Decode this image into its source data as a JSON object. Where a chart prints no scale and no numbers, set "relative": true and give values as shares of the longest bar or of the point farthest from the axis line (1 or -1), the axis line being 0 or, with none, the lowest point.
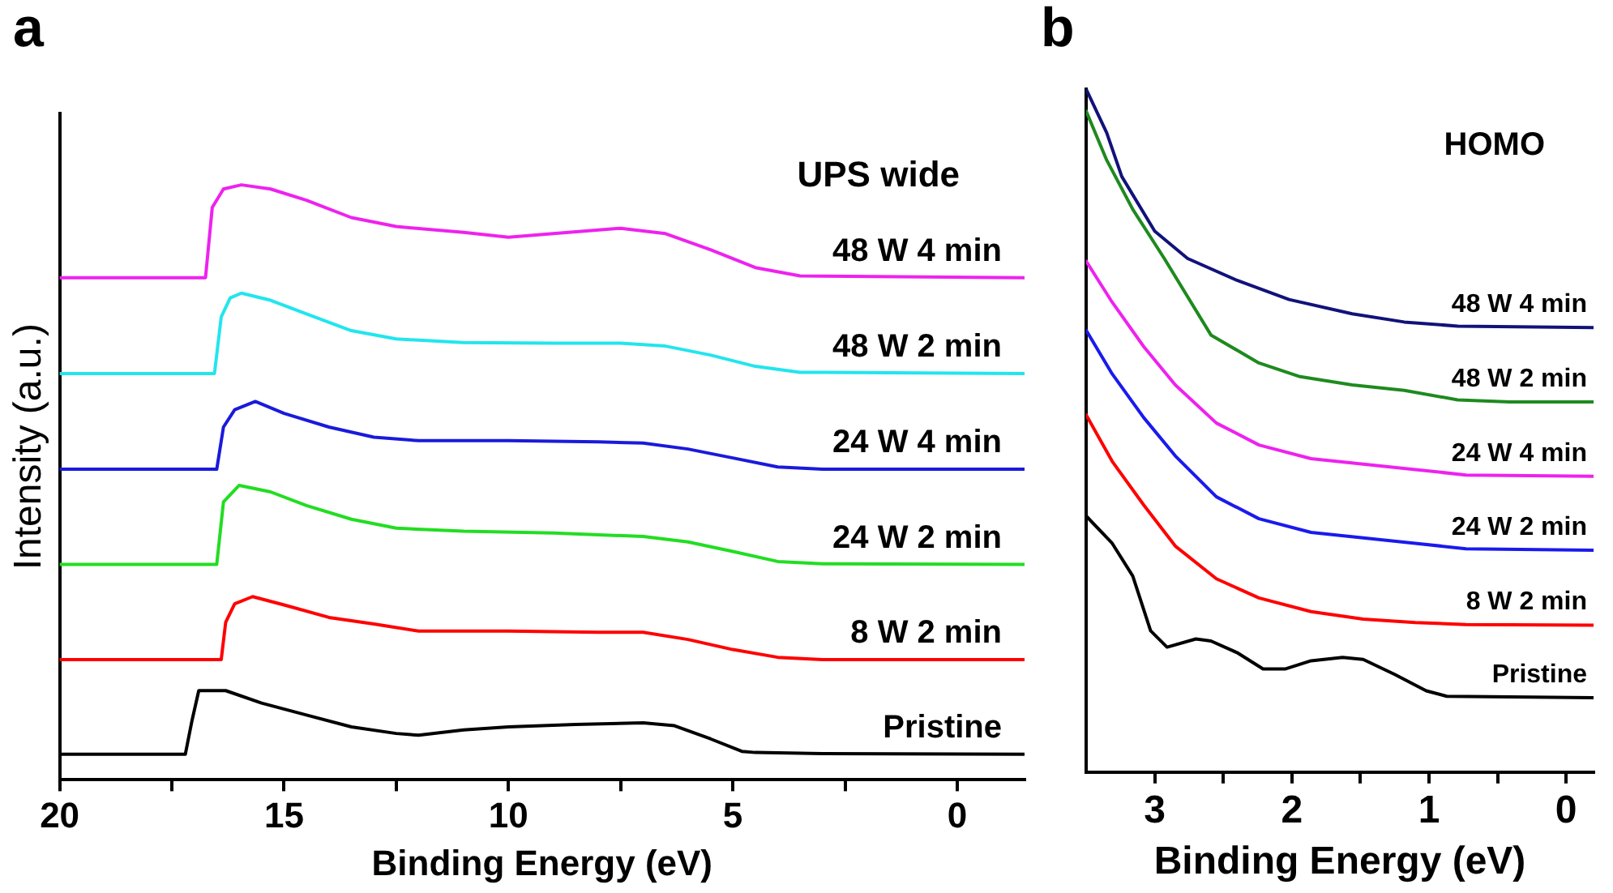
{
  "chart_data": [
    {
      "type": "line",
      "title": "a",
      "xlabel": "Binding Energy (eV)",
      "ylabel": "Intensity (a.u.)",
      "relative": true,
      "legend": false,
      "grid": false,
      "marker": "none",
      "line_style": "solid",
      "xlim": [
        20,
        -1.5
      ],
      "xticks": [
        20,
        {
          "value": 17.5,
          "label": null
        },
        15,
        {
          "value": 12.5,
          "label": null
        },
        10,
        {
          "value": 7.5,
          "label": null
        },
        5,
        {
          "value": 2.5,
          "label": null
        },
        0
      ],
      "annotations": [
        "UPS wide"
      ],
      "series": [
        {
          "name": "Pristine",
          "color": "#000000",
          "x": [
            20,
            17.2,
            17.05,
            16.9,
            16.3,
            15.5,
            14.5,
            13.5,
            12.5,
            12,
            11,
            10,
            8.5,
            7,
            6.3,
            5.5,
            4.8,
            4.5,
            3,
            -1.5
          ],
          "values": [
            0.043,
            0.043,
            0.1,
            0.15,
            0.15,
            0.129,
            0.109,
            0.089,
            0.078,
            0.075,
            0.084,
            0.089,
            0.093,
            0.096,
            0.091,
            0.069,
            0.048,
            0.046,
            0.044,
            0.043
          ]
        },
        {
          "name": "8 W 2 min",
          "color": "#ff0000",
          "x": [
            20,
            16.4,
            16.3,
            16.1,
            15.7,
            15,
            14,
            13,
            12,
            10,
            8,
            7,
            6,
            5,
            4,
            3,
            -1.5
          ],
          "values": [
            0.202,
            0.202,
            0.265,
            0.296,
            0.308,
            0.294,
            0.273,
            0.262,
            0.25,
            0.25,
            0.248,
            0.248,
            0.236,
            0.219,
            0.206,
            0.202,
            0.202
          ]
        },
        {
          "name": "24 W 2 min",
          "color": "#22dd22",
          "x": [
            20,
            16.5,
            16.35,
            16,
            15.3,
            14.5,
            13.5,
            12.5,
            11,
            9,
            7,
            6,
            5,
            4,
            3,
            -1.5
          ],
          "values": [
            0.362,
            0.362,
            0.467,
            0.495,
            0.484,
            0.461,
            0.438,
            0.423,
            0.418,
            0.415,
            0.409,
            0.4,
            0.384,
            0.367,
            0.363,
            0.362
          ]
        },
        {
          "name": "24 W 4 min",
          "color": "#1a1adb",
          "x": [
            20,
            16.5,
            16.35,
            16.1,
            15.64,
            15,
            14,
            13,
            12,
            10,
            8,
            7,
            6,
            5,
            4,
            3,
            -1.5
          ],
          "values": [
            0.522,
            0.522,
            0.593,
            0.622,
            0.636,
            0.616,
            0.593,
            0.576,
            0.57,
            0.57,
            0.568,
            0.566,
            0.556,
            0.541,
            0.526,
            0.522,
            0.522
          ]
        },
        {
          "name": "48 W 2 min",
          "color": "#22e5ee",
          "x": [
            20,
            16.55,
            16.4,
            16.2,
            15.95,
            15.3,
            14.5,
            13.5,
            12.5,
            11,
            9,
            7.5,
            6.5,
            5.5,
            4.5,
            3.5,
            -1.5
          ],
          "values": [
            0.683,
            0.683,
            0.778,
            0.81,
            0.818,
            0.806,
            0.783,
            0.755,
            0.741,
            0.735,
            0.734,
            0.734,
            0.729,
            0.714,
            0.695,
            0.685,
            0.683
          ]
        },
        {
          "name": "48 W 4 min",
          "color": "#ee22ee",
          "x": [
            20,
            16.75,
            16.6,
            16.35,
            15.95,
            15.3,
            14.5,
            13.5,
            12.5,
            11,
            10,
            9,
            7.5,
            6.5,
            5.5,
            4.5,
            3.5,
            -1.5
          ],
          "values": [
            0.844,
            0.844,
            0.962,
            0.993,
            1.0,
            0.993,
            0.974,
            0.945,
            0.93,
            0.92,
            0.912,
            0.918,
            0.927,
            0.918,
            0.891,
            0.861,
            0.847,
            0.844
          ]
        }
      ]
    },
    {
      "type": "line",
      "title": "b",
      "xlabel": "Binding Energy (eV)",
      "relative": true,
      "legend": false,
      "grid": false,
      "marker": "none",
      "line_style": "solid",
      "xlim": [
        3.5,
        -0.2
      ],
      "xticks": [
        3,
        {
          "value": 2.5,
          "label": null
        },
        2,
        {
          "value": 1.5,
          "label": null
        },
        1,
        {
          "value": 0.5,
          "label": null
        },
        0
      ],
      "annotations": [
        "HOMO"
      ],
      "series": [
        {
          "name": "Pristine",
          "color": "#000000",
          "x": [
            3.5,
            3.31,
            3.16,
            3.03,
            2.91,
            2.7,
            2.59,
            2.4,
            2.21,
            2.05,
            1.86,
            1.63,
            1.48,
            1.25,
            1.02,
            0.87,
            -0.2
          ],
          "values": [
            0.375,
            0.335,
            0.287,
            0.207,
            0.183,
            0.195,
            0.192,
            0.175,
            0.151,
            0.151,
            0.163,
            0.168,
            0.165,
            0.143,
            0.119,
            0.111,
            0.109
          ]
        },
        {
          "name": "8 W 2 min",
          "color": "#ff0000",
          "x": [
            3.5,
            3.31,
            3.08,
            2.85,
            2.55,
            2.24,
            1.86,
            1.48,
            1.1,
            0.73,
            -0.2
          ],
          "values": [
            0.523,
            0.455,
            0.391,
            0.331,
            0.283,
            0.255,
            0.235,
            0.224,
            0.219,
            0.216,
            0.215
          ]
        },
        {
          "name": "24 W 2 min",
          "color": "#1a1aee",
          "x": [
            3.5,
            3.31,
            3.08,
            2.85,
            2.55,
            2.24,
            1.86,
            1.48,
            1.1,
            0.73,
            -0.2
          ],
          "values": [
            0.647,
            0.583,
            0.519,
            0.463,
            0.403,
            0.371,
            0.351,
            0.343,
            0.335,
            0.327,
            0.325
          ]
        },
        {
          "name": "24 W 4 min",
          "color": "#ee22ee",
          "x": [
            3.5,
            3.31,
            3.08,
            2.85,
            2.55,
            2.24,
            1.86,
            1.48,
            1.1,
            0.73,
            -0.2
          ],
          "values": [
            0.748,
            0.688,
            0.623,
            0.567,
            0.511,
            0.479,
            0.459,
            0.451,
            0.443,
            0.435,
            0.433
          ]
        },
        {
          "name": "48 W 2 min",
          "color": "#1e8a1e",
          "x": [
            3.5,
            3.35,
            3.16,
            2.93,
            2.59,
            2.24,
            1.94,
            1.56,
            1.18,
            0.79,
            0.41,
            -0.2
          ],
          "values": [
            0.968,
            0.896,
            0.824,
            0.752,
            0.64,
            0.599,
            0.579,
            0.567,
            0.559,
            0.545,
            0.542,
            0.542
          ]
        },
        {
          "name": "48 W 4 min",
          "color": "#12127a",
          "x": [
            3.5,
            3.35,
            3.24,
            3.0,
            2.76,
            2.4,
            2.02,
            1.56,
            1.18,
            0.79,
            -0.2
          ],
          "values": [
            1.0,
            0.936,
            0.872,
            0.792,
            0.752,
            0.72,
            0.692,
            0.671,
            0.659,
            0.653,
            0.651
          ]
        }
      ]
    }
  ]
}
